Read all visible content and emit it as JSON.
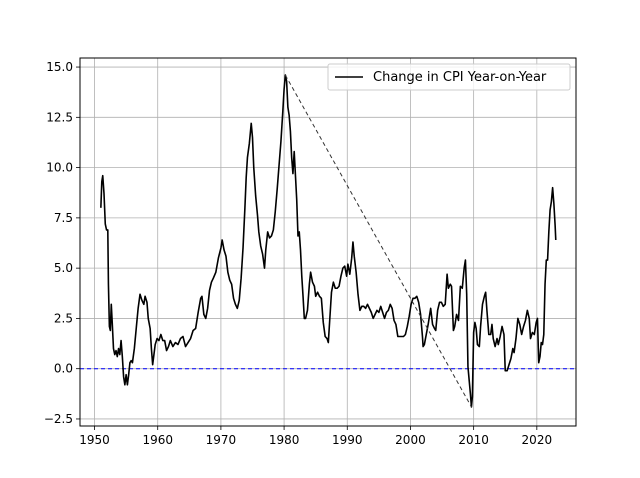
{
  "chart_data": {
    "type": "line",
    "title": "",
    "xlabel": "",
    "ylabel": "",
    "xlim": [
      1947.7,
      2026.2
    ],
    "ylim": [
      -2.85,
      15.45
    ],
    "grid": true,
    "legend_placement": "top-right",
    "x_ticks": [
      1950,
      1960,
      1970,
      1980,
      1990,
      2000,
      2010,
      2020
    ],
    "x_tick_labels": [
      "1950",
      "1960",
      "1970",
      "1980",
      "1990",
      "2000",
      "2010",
      "2020"
    ],
    "y_ticks": [
      -2.5,
      0.0,
      2.5,
      5.0,
      7.5,
      10.0,
      12.5,
      15.0
    ],
    "y_tick_labels": [
      "−2.5",
      "0.0",
      "2.5",
      "5.0",
      "7.5",
      "10.0",
      "12.5",
      "15.0"
    ],
    "series": [
      {
        "name": "Change in CPI Year-on-Year",
        "color": "#000000",
        "style": "solid",
        "points": [
          [
            1951.0,
            8.0
          ],
          [
            1951.15,
            9.3
          ],
          [
            1951.3,
            9.6
          ],
          [
            1951.5,
            8.7
          ],
          [
            1951.7,
            7.2
          ],
          [
            1951.9,
            6.9
          ],
          [
            1952.1,
            6.9
          ],
          [
            1952.2,
            4.2
          ],
          [
            1952.35,
            2.1
          ],
          [
            1952.5,
            1.9
          ],
          [
            1952.65,
            3.2
          ],
          [
            1952.8,
            2.3
          ],
          [
            1953.0,
            1.0
          ],
          [
            1953.2,
            0.7
          ],
          [
            1953.4,
            0.9
          ],
          [
            1953.6,
            0.6
          ],
          [
            1953.8,
            1.0
          ],
          [
            1954.0,
            0.7
          ],
          [
            1954.2,
            1.4
          ],
          [
            1954.4,
            0.6
          ],
          [
            1954.6,
            -0.4
          ],
          [
            1954.8,
            -0.8
          ],
          [
            1955.0,
            -0.3
          ],
          [
            1955.2,
            -0.8
          ],
          [
            1955.4,
            -0.3
          ],
          [
            1955.6,
            0.3
          ],
          [
            1955.8,
            0.4
          ],
          [
            1956.0,
            0.3
          ],
          [
            1956.3,
            1.0
          ],
          [
            1956.6,
            2.0
          ],
          [
            1956.9,
            3.0
          ],
          [
            1957.2,
            3.7
          ],
          [
            1957.5,
            3.4
          ],
          [
            1957.8,
            3.2
          ],
          [
            1958.0,
            3.6
          ],
          [
            1958.3,
            3.3
          ],
          [
            1958.5,
            2.5
          ],
          [
            1958.8,
            2.0
          ],
          [
            1959.0,
            1.0
          ],
          [
            1959.2,
            0.2
          ],
          [
            1959.4,
            0.7
          ],
          [
            1959.6,
            1.2
          ],
          [
            1959.9,
            1.5
          ],
          [
            1960.2,
            1.4
          ],
          [
            1960.5,
            1.7
          ],
          [
            1960.8,
            1.4
          ],
          [
            1961.1,
            1.4
          ],
          [
            1961.4,
            0.9
          ],
          [
            1961.7,
            1.1
          ],
          [
            1962.0,
            1.4
          ],
          [
            1962.4,
            1.1
          ],
          [
            1962.8,
            1.3
          ],
          [
            1963.2,
            1.2
          ],
          [
            1963.6,
            1.5
          ],
          [
            1964.0,
            1.6
          ],
          [
            1964.4,
            1.1
          ],
          [
            1964.8,
            1.3
          ],
          [
            1965.2,
            1.5
          ],
          [
            1965.6,
            1.9
          ],
          [
            1966.0,
            2.0
          ],
          [
            1966.4,
            2.8
          ],
          [
            1966.8,
            3.5
          ],
          [
            1967.0,
            3.6
          ],
          [
            1967.3,
            2.7
          ],
          [
            1967.6,
            2.5
          ],
          [
            1967.9,
            3.0
          ],
          [
            1968.2,
            3.9
          ],
          [
            1968.5,
            4.3
          ],
          [
            1968.8,
            4.5
          ],
          [
            1969.2,
            4.8
          ],
          [
            1969.6,
            5.5
          ],
          [
            1970.0,
            6.0
          ],
          [
            1970.2,
            6.4
          ],
          [
            1970.5,
            5.9
          ],
          [
            1970.8,
            5.6
          ],
          [
            1971.1,
            4.8
          ],
          [
            1971.4,
            4.4
          ],
          [
            1971.7,
            4.2
          ],
          [
            1972.0,
            3.5
          ],
          [
            1972.3,
            3.2
          ],
          [
            1972.6,
            3.0
          ],
          [
            1972.9,
            3.4
          ],
          [
            1973.2,
            4.5
          ],
          [
            1973.5,
            6.0
          ],
          [
            1973.8,
            8.0
          ],
          [
            1974.0,
            9.5
          ],
          [
            1974.2,
            10.5
          ],
          [
            1974.5,
            11.2
          ],
          [
            1974.8,
            12.2
          ],
          [
            1975.0,
            11.5
          ],
          [
            1975.2,
            10.0
          ],
          [
            1975.5,
            8.6
          ],
          [
            1975.8,
            7.6
          ],
          [
            1976.0,
            6.8
          ],
          [
            1976.3,
            6.1
          ],
          [
            1976.6,
            5.7
          ],
          [
            1976.9,
            5.0
          ],
          [
            1977.1,
            5.9
          ],
          [
            1977.4,
            6.8
          ],
          [
            1977.7,
            6.5
          ],
          [
            1978.0,
            6.6
          ],
          [
            1978.3,
            6.9
          ],
          [
            1978.6,
            7.8
          ],
          [
            1978.9,
            8.9
          ],
          [
            1979.2,
            10.1
          ],
          [
            1979.5,
            11.3
          ],
          [
            1979.8,
            12.8
          ],
          [
            1980.0,
            13.9
          ],
          [
            1980.2,
            14.6
          ],
          [
            1980.4,
            14.3
          ],
          [
            1980.6,
            13.0
          ],
          [
            1980.8,
            12.6
          ],
          [
            1981.0,
            11.8
          ],
          [
            1981.2,
            10.5
          ],
          [
            1981.4,
            9.7
          ],
          [
            1981.6,
            10.8
          ],
          [
            1981.8,
            9.6
          ],
          [
            1982.0,
            8.4
          ],
          [
            1982.2,
            6.6
          ],
          [
            1982.4,
            6.8
          ],
          [
            1982.6,
            5.9
          ],
          [
            1982.8,
            4.6
          ],
          [
            1983.0,
            3.6
          ],
          [
            1983.2,
            2.5
          ],
          [
            1983.4,
            2.5
          ],
          [
            1983.7,
            2.9
          ],
          [
            1984.0,
            4.2
          ],
          [
            1984.2,
            4.8
          ],
          [
            1984.5,
            4.3
          ],
          [
            1984.8,
            4.1
          ],
          [
            1985.0,
            3.6
          ],
          [
            1985.3,
            3.8
          ],
          [
            1985.6,
            3.6
          ],
          [
            1985.9,
            3.5
          ],
          [
            1986.2,
            2.3
          ],
          [
            1986.5,
            1.6
          ],
          [
            1986.8,
            1.5
          ],
          [
            1987.0,
            1.3
          ],
          [
            1987.2,
            2.3
          ],
          [
            1987.5,
            3.8
          ],
          [
            1987.8,
            4.3
          ],
          [
            1988.1,
            4.0
          ],
          [
            1988.4,
            4.0
          ],
          [
            1988.7,
            4.1
          ],
          [
            1989.0,
            4.6
          ],
          [
            1989.3,
            5.0
          ],
          [
            1989.6,
            5.1
          ],
          [
            1989.9,
            4.6
          ],
          [
            1990.1,
            5.2
          ],
          [
            1990.4,
            4.7
          ],
          [
            1990.7,
            5.5
          ],
          [
            1990.9,
            6.3
          ],
          [
            1991.1,
            5.6
          ],
          [
            1991.4,
            4.8
          ],
          [
            1991.7,
            3.7
          ],
          [
            1992.0,
            2.9
          ],
          [
            1992.3,
            3.1
          ],
          [
            1992.6,
            3.1
          ],
          [
            1992.9,
            3.0
          ],
          [
            1993.2,
            3.2
          ],
          [
            1993.5,
            3.0
          ],
          [
            1993.8,
            2.8
          ],
          [
            1994.1,
            2.5
          ],
          [
            1994.4,
            2.7
          ],
          [
            1994.7,
            2.9
          ],
          [
            1995.0,
            2.8
          ],
          [
            1995.3,
            3.1
          ],
          [
            1995.6,
            2.8
          ],
          [
            1995.9,
            2.5
          ],
          [
            1996.2,
            2.8
          ],
          [
            1996.5,
            2.9
          ],
          [
            1996.8,
            3.2
          ],
          [
            1997.1,
            3.0
          ],
          [
            1997.4,
            2.4
          ],
          [
            1997.7,
            2.2
          ],
          [
            1998.0,
            1.6
          ],
          [
            1998.3,
            1.6
          ],
          [
            1998.6,
            1.6
          ],
          [
            1998.9,
            1.6
          ],
          [
            1999.2,
            1.7
          ],
          [
            1999.5,
            2.1
          ],
          [
            1999.8,
            2.6
          ],
          [
            2000.1,
            3.2
          ],
          [
            2000.4,
            3.5
          ],
          [
            2000.7,
            3.5
          ],
          [
            2001.0,
            3.6
          ],
          [
            2001.3,
            3.3
          ],
          [
            2001.6,
            2.7
          ],
          [
            2001.9,
            1.6
          ],
          [
            2002.0,
            1.1
          ],
          [
            2002.2,
            1.2
          ],
          [
            2002.5,
            1.7
          ],
          [
            2002.8,
            2.2
          ],
          [
            2003.0,
            2.6
          ],
          [
            2003.2,
            3.0
          ],
          [
            2003.5,
            2.2
          ],
          [
            2003.8,
            2.0
          ],
          [
            2004.0,
            1.9
          ],
          [
            2004.3,
            2.9
          ],
          [
            2004.6,
            3.3
          ],
          [
            2004.9,
            3.3
          ],
          [
            2005.2,
            3.1
          ],
          [
            2005.5,
            3.2
          ],
          [
            2005.8,
            4.7
          ],
          [
            2006.0,
            4.0
          ],
          [
            2006.3,
            4.2
          ],
          [
            2006.5,
            4.1
          ],
          [
            2006.8,
            1.9
          ],
          [
            2007.0,
            2.1
          ],
          [
            2007.3,
            2.7
          ],
          [
            2007.6,
            2.4
          ],
          [
            2007.9,
            4.1
          ],
          [
            2008.2,
            4.0
          ],
          [
            2008.5,
            5.0
          ],
          [
            2008.7,
            5.4
          ],
          [
            2008.9,
            3.7
          ],
          [
            2009.1,
            0.1
          ],
          [
            2009.3,
            -0.6
          ],
          [
            2009.5,
            -1.3
          ],
          [
            2009.65,
            -1.9
          ],
          [
            2009.8,
            -1.4
          ],
          [
            2010.0,
            1.8
          ],
          [
            2010.2,
            2.3
          ],
          [
            2010.4,
            2.0
          ],
          [
            2010.6,
            1.2
          ],
          [
            2010.9,
            1.1
          ],
          [
            2011.1,
            2.1
          ],
          [
            2011.4,
            3.2
          ],
          [
            2011.7,
            3.6
          ],
          [
            2011.9,
            3.8
          ],
          [
            2012.1,
            2.9
          ],
          [
            2012.4,
            1.7
          ],
          [
            2012.7,
            1.7
          ],
          [
            2012.9,
            2.2
          ],
          [
            2013.1,
            1.5
          ],
          [
            2013.4,
            1.1
          ],
          [
            2013.7,
            1.5
          ],
          [
            2013.9,
            1.2
          ],
          [
            2014.2,
            1.6
          ],
          [
            2014.5,
            2.1
          ],
          [
            2014.8,
            1.7
          ],
          [
            2015.0,
            -0.1
          ],
          [
            2015.3,
            -0.1
          ],
          [
            2015.6,
            0.2
          ],
          [
            2015.9,
            0.5
          ],
          [
            2016.2,
            1.0
          ],
          [
            2016.4,
            0.8
          ],
          [
            2016.7,
            1.5
          ],
          [
            2017.0,
            2.5
          ],
          [
            2017.3,
            2.2
          ],
          [
            2017.6,
            1.7
          ],
          [
            2017.9,
            2.1
          ],
          [
            2018.2,
            2.4
          ],
          [
            2018.5,
            2.9
          ],
          [
            2018.8,
            2.5
          ],
          [
            2019.0,
            1.5
          ],
          [
            2019.3,
            1.8
          ],
          [
            2019.6,
            1.7
          ],
          [
            2019.9,
            2.3
          ],
          [
            2020.1,
            2.5
          ],
          [
            2020.3,
            0.3
          ],
          [
            2020.5,
            0.6
          ],
          [
            2020.7,
            1.3
          ],
          [
            2020.9,
            1.2
          ],
          [
            2021.1,
            1.7
          ],
          [
            2021.3,
            4.2
          ],
          [
            2021.5,
            5.4
          ],
          [
            2021.7,
            5.4
          ],
          [
            2021.9,
            6.8
          ],
          [
            2022.1,
            7.9
          ],
          [
            2022.3,
            8.3
          ],
          [
            2022.5,
            9.0
          ],
          [
            2022.7,
            8.2
          ],
          [
            2022.9,
            7.1
          ],
          [
            2023.0,
            6.4
          ]
        ]
      },
      {
        "name": "",
        "color": "#333333",
        "style": "dashed",
        "points": [
          [
            1980.2,
            14.6
          ],
          [
            2009.65,
            -1.9
          ]
        ]
      },
      {
        "name": "",
        "color": "#0000ff",
        "style": "dashed",
        "points": [
          [
            1947.7,
            0.0
          ],
          [
            2026.2,
            0.0
          ]
        ]
      }
    ]
  }
}
